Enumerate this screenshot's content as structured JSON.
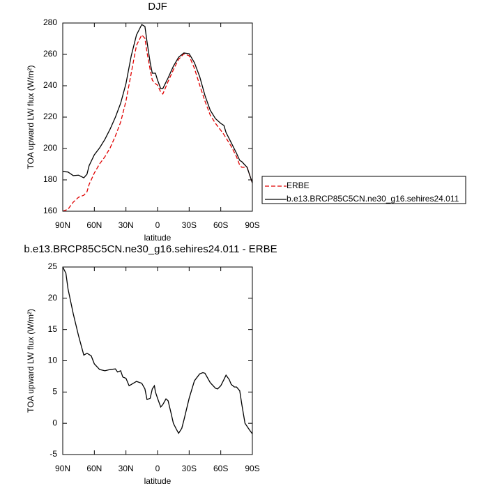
{
  "chart_data": [
    {
      "type": "line",
      "title": "DJF",
      "xlabel": "latitude",
      "ylabel": "TOA upward LW flux (W/m²)",
      "x": [
        90,
        85,
        80,
        75,
        70,
        67,
        65,
        60,
        55,
        50,
        45,
        40,
        35,
        30,
        25,
        20,
        15,
        12,
        10,
        7,
        5,
        2,
        0,
        -3,
        -5,
        -10,
        -15,
        -20,
        -25,
        -30,
        -35,
        -40,
        -45,
        -50,
        -55,
        -60,
        -63,
        -65,
        -70,
        -75,
        -78,
        -80,
        -85,
        -90
      ],
      "series": [
        {
          "name": "ERBE",
          "color": "#e00000",
          "linestyle": "dashed",
          "values": [
            160,
            161.3,
            165.8,
            168.9,
            170.2,
            172.4,
            177,
            184.4,
            190.2,
            194.7,
            200.4,
            208,
            216.9,
            230.2,
            248,
            265.8,
            272.4,
            270.2,
            261.3,
            250.2,
            243.6,
            241.3,
            240.4,
            236,
            234.7,
            242.7,
            250.2,
            256.9,
            260.4,
            259.1,
            251.1,
            240.4,
            230.2,
            221.3,
            216,
            211.6,
            208.9,
            206.7,
            201.3,
            194.7,
            189.3,
            188,
            188,
            178
          ]
        },
        {
          "name": "b.e13.BRCP85C5CN.ne30_g16.sehires24.011",
          "color": "#000000",
          "linestyle": "solid",
          "values": [
            185.3,
            185,
            182.7,
            183,
            181.3,
            183.6,
            189,
            196,
            200.4,
            205.8,
            212.4,
            220,
            228.9,
            241.3,
            259,
            272.4,
            279,
            277.8,
            268,
            254.7,
            248,
            248,
            243.6,
            238.2,
            238.2,
            245,
            252.4,
            258.2,
            260.9,
            260.4,
            254.7,
            245.8,
            233.8,
            224.4,
            219,
            216,
            214.7,
            210.2,
            203.6,
            196.9,
            192.4,
            191.6,
            188,
            178
          ]
        }
      ],
      "xlim": [
        90,
        -90
      ],
      "ylim": [
        160,
        280
      ],
      "xticks": [
        {
          "value": 90,
          "label": "90N"
        },
        {
          "value": 60,
          "label": "60N"
        },
        {
          "value": 30,
          "label": "30N"
        },
        0,
        {
          "value": -30,
          "label": "30S"
        },
        {
          "value": -60,
          "label": "60S"
        },
        {
          "value": -90,
          "label": "90S"
        }
      ],
      "yticks": [
        160,
        180,
        200,
        220,
        240,
        260,
        280
      ],
      "legend": "outside-right"
    },
    {
      "type": "line",
      "title": "b.e13.BRCP85C5CN.ne30_g16.sehires24.011 - ERBE",
      "xlabel": "latitude",
      "ylabel": "TOA upward LW flux (W/m²)",
      "x": [
        90,
        87,
        85,
        80,
        75,
        70,
        67,
        63,
        60,
        55,
        50,
        45,
        40,
        38,
        35,
        33,
        30,
        27,
        25,
        20,
        15,
        12,
        10,
        7,
        5,
        3,
        2,
        0,
        -3,
        -5,
        -8,
        -10,
        -13,
        -15,
        -18,
        -20,
        -23,
        -25,
        -30,
        -35,
        -40,
        -43,
        -45,
        -50,
        -55,
        -57,
        -60,
        -63,
        -65,
        -68,
        -70,
        -73,
        -75,
        -78,
        -80,
        -83,
        -87,
        -90
      ],
      "series": [
        {
          "color": "#000000",
          "linestyle": "solid",
          "values": [
            25,
            24,
            21.5,
            17.5,
            14,
            10.9,
            11.2,
            10.8,
            9.5,
            8.6,
            8.4,
            8.6,
            8.7,
            8.2,
            8.4,
            7.4,
            7.2,
            6,
            6.2,
            6.7,
            6.4,
            5.5,
            3.8,
            4,
            5.5,
            6,
            5,
            4,
            2.6,
            3,
            3.9,
            3.6,
            1.5,
            0,
            -1,
            -1.6,
            -0.8,
            0.5,
            4,
            6.8,
            7.9,
            8.1,
            8,
            6.5,
            5.6,
            5.5,
            6,
            7,
            7.7,
            7,
            6.2,
            5.8,
            5.8,
            5.2,
            3,
            0,
            -1,
            -1.7
          ]
        }
      ],
      "xlim": [
        90,
        -90
      ],
      "ylim": [
        -5,
        25
      ],
      "xticks": [
        {
          "value": 90,
          "label": "90N"
        },
        {
          "value": 60,
          "label": "60N"
        },
        {
          "value": 30,
          "label": "30N"
        },
        0,
        {
          "value": -30,
          "label": "30S"
        },
        {
          "value": -60,
          "label": "60S"
        },
        {
          "value": -90,
          "label": "90S"
        }
      ],
      "yticks": [
        -5,
        0,
        5,
        10,
        15,
        20,
        25
      ]
    }
  ]
}
